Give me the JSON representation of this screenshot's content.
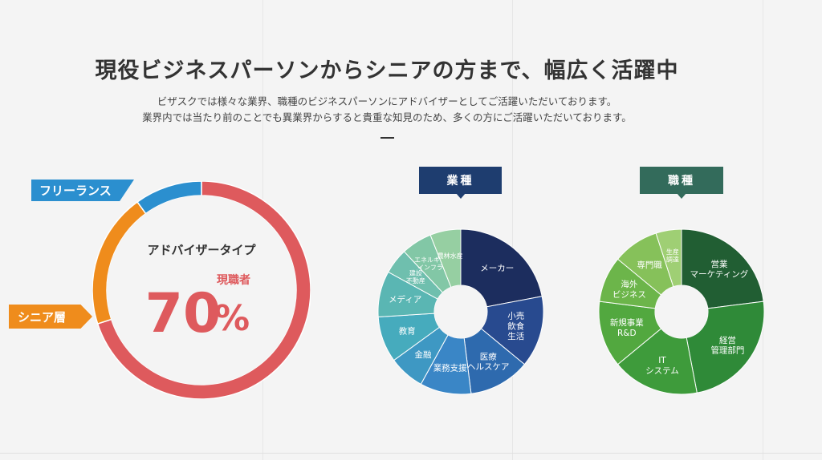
{
  "header": {
    "title": "現役ビジネスパーソンからシニアの方まで、幅広く活躍中",
    "subtitle_line1": "ビザスクでは様々な業界、職種のビジネスパーソンにアドバイザーとしてご活躍いただいております。",
    "subtitle_line2": "業界内では当たり前のことでも異業界からすると貴重な知見のため、多くの方にご活躍いただいております。"
  },
  "advisor_chart": {
    "label_freelance": "フリーランス",
    "label_senior": "シニア層",
    "center_title": "アドバイザータイプ",
    "center_value": "70",
    "center_unit": "%",
    "center_label": "現職者",
    "colors": {
      "current": "#de5a5d",
      "senior": "#ef8c1c",
      "freelance": "#2b8fcf"
    }
  },
  "industry_chart": {
    "heading": "業種"
  },
  "job_chart": {
    "heading": "職種"
  },
  "chart_data": [
    {
      "type": "pie",
      "title": "アドバイザータイプ",
      "values": [
        {
          "label": "現職者",
          "value": 70,
          "color": "#de5a5d"
        },
        {
          "label": "シニア層",
          "value": 20,
          "color": "#ef8c1c"
        },
        {
          "label": "フリーランス",
          "value": 10,
          "color": "#2b8fcf"
        }
      ]
    },
    {
      "type": "pie",
      "title": "業種",
      "values": [
        {
          "label": [
            "メーカー"
          ],
          "value": 22,
          "color": "#1c2d5e"
        },
        {
          "label": [
            "小売",
            "飲食",
            "生活"
          ],
          "value": 14,
          "color": "#284a8f"
        },
        {
          "label": [
            "医療",
            "ヘルスケア"
          ],
          "value": 12,
          "color": "#2e6aae"
        },
        {
          "label": [
            "業務支援"
          ],
          "value": 10,
          "color": "#3a86c6"
        },
        {
          "label": [
            "金融"
          ],
          "value": 7,
          "color": "#3e98c3"
        },
        {
          "label": [
            "教育"
          ],
          "value": 9,
          "color": "#46abbd"
        },
        {
          "label": [
            "メディア"
          ],
          "value": 9,
          "color": "#5ab6b3"
        },
        {
          "label": [
            "建設",
            "不動産"
          ],
          "value": 5,
          "color": "#6fbfae"
        },
        {
          "label": [
            "エネルギー",
            "インフラ"
          ],
          "value": 6,
          "color": "#82c7a6"
        },
        {
          "label": [
            "農林水産"
          ],
          "value": 6,
          "color": "#96cfa2"
        }
      ]
    },
    {
      "type": "pie",
      "title": "職種",
      "values": [
        {
          "label": [
            "営業",
            "マーケティング"
          ],
          "value": 23,
          "color": "#215e33"
        },
        {
          "label": [
            "経営",
            "管理部門"
          ],
          "value": 24,
          "color": "#2f8a38"
        },
        {
          "label": [
            "IT",
            "システム"
          ],
          "value": 17,
          "color": "#3e9b3b"
        },
        {
          "label": [
            "新規事業",
            "R&D"
          ],
          "value": 13,
          "color": "#52a83f"
        },
        {
          "label": [
            "海外",
            "ビジネス"
          ],
          "value": 9,
          "color": "#6cb54a"
        },
        {
          "label": [
            "専門職"
          ],
          "value": 9,
          "color": "#86c15a"
        },
        {
          "label": [
            "生産",
            "調達"
          ],
          "value": 5,
          "color": "#9fcf74"
        }
      ]
    }
  ]
}
